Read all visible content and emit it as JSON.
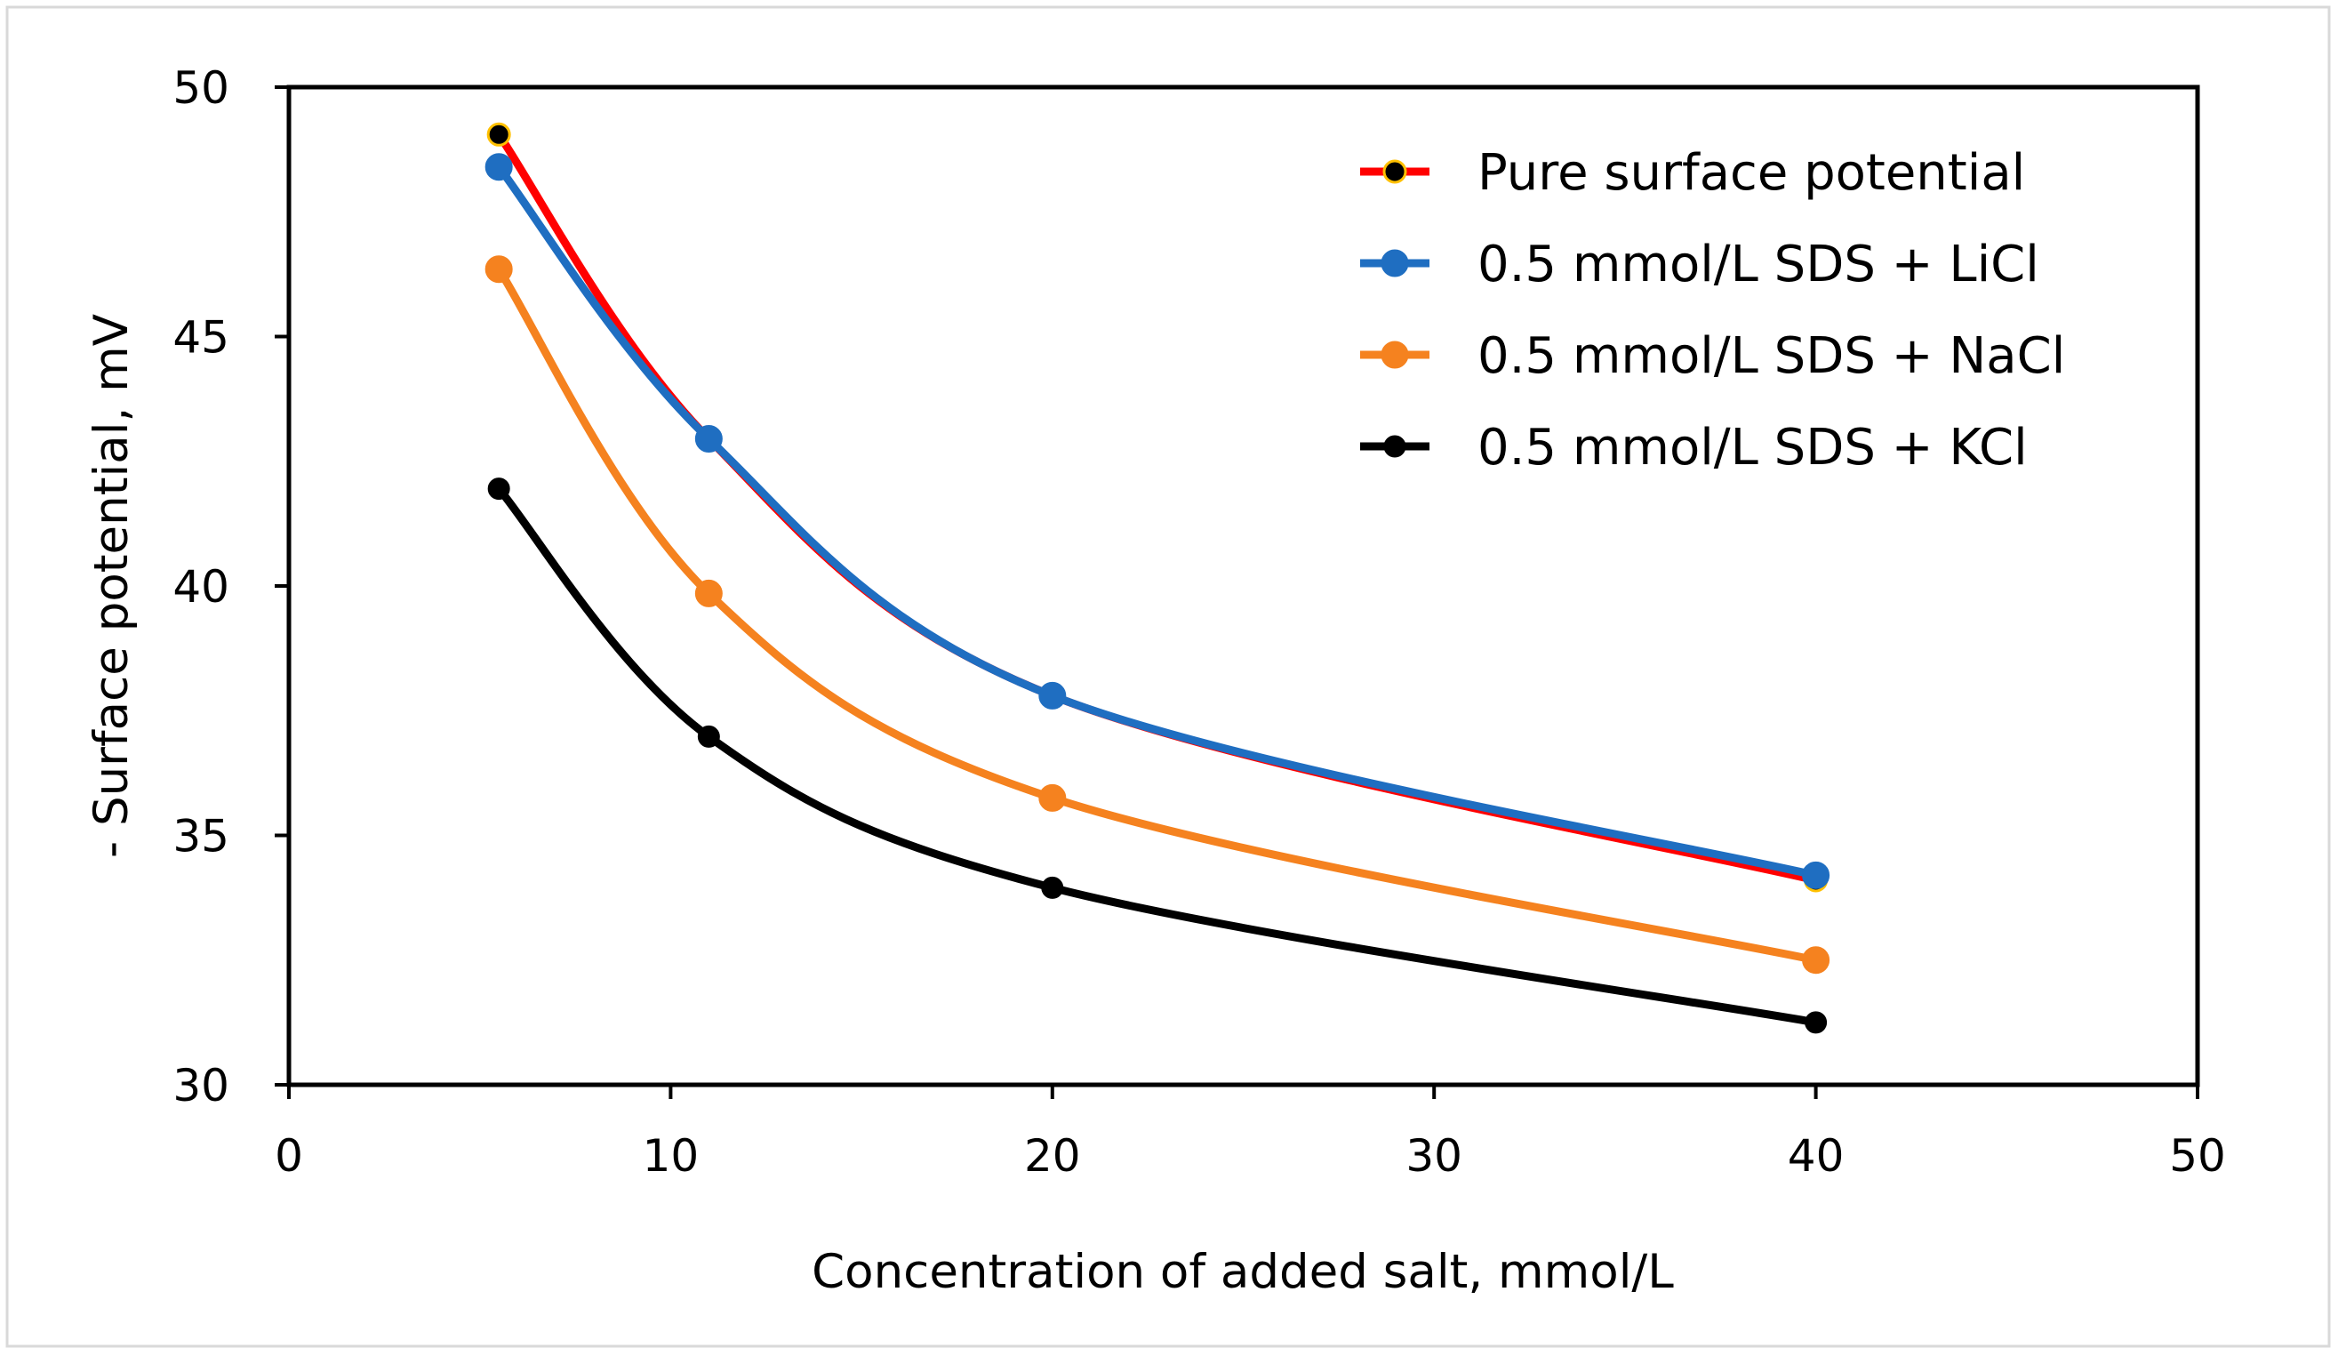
{
  "chart_data": {
    "type": "line",
    "title": "",
    "xlabel": "Concentration of added salt, mmol/L",
    "ylabel": "- Surface potential, mV",
    "xlim": [
      0,
      50
    ],
    "ylim": [
      30,
      50
    ],
    "x_ticks": [
      "0",
      "10",
      "20",
      "30",
      "40",
      "50"
    ],
    "y_ticks": [
      "30",
      "35",
      "40",
      "45",
      "50"
    ],
    "grid": false,
    "legend_position": "top-right",
    "x": [
      5.5,
      11,
      20,
      40
    ],
    "series": [
      {
        "name": "Pure surface potential",
        "values": [
          49.05,
          42.95,
          37.8,
          34.1
        ],
        "line_color": "#FF0000",
        "marker_color": "#000000",
        "marker_edge": "#FFC000",
        "marker_size": "small"
      },
      {
        "name": "0.5 mmol/L SDS + LiCl",
        "values": [
          48.4,
          42.95,
          37.8,
          34.2
        ],
        "line_color": "#1F6EC1",
        "marker_color": "#1F6EC1",
        "marker_edge": "#1F6EC1",
        "marker_size": "large"
      },
      {
        "name": "0.5 mmol/L SDS + NaCl",
        "values": [
          46.35,
          39.85,
          35.75,
          32.5
        ],
        "line_color": "#F5821F",
        "marker_color": "#F5821F",
        "marker_edge": "#F5821F",
        "marker_size": "large"
      },
      {
        "name": "0.5 mmol/L SDS + KCl",
        "values": [
          41.95,
          36.98,
          33.95,
          31.25
        ],
        "line_color": "#000000",
        "marker_color": "#000000",
        "marker_edge": "#000000",
        "marker_size": "small"
      }
    ]
  }
}
